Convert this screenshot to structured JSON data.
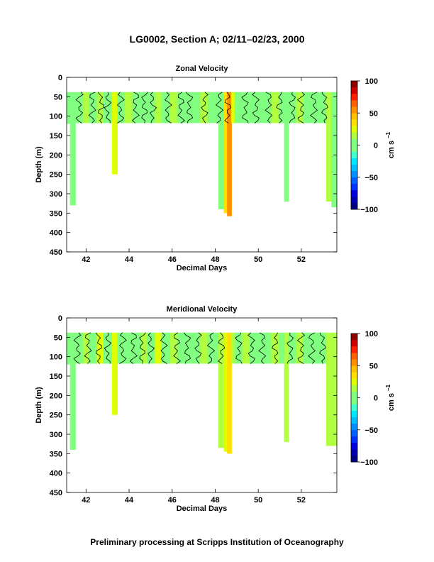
{
  "page": {
    "title": "LG0002, Section A; 02/11–02/23, 2000",
    "footer": "Preliminary processing at Scripps Institution of Oceanography"
  },
  "chart_data": [
    {
      "type": "heatmap",
      "title": "Zonal Velocity",
      "xlabel": "Decimal Days",
      "ylabel": "Depth (m)",
      "xlim": [
        41.1,
        53.65
      ],
      "ylim": [
        450,
        0
      ],
      "xticks": [
        "42",
        "44",
        "46",
        "48",
        "50",
        "52"
      ],
      "yticks": [
        "0",
        "50",
        "100",
        "150",
        "200",
        "250",
        "300",
        "350",
        "400",
        "450"
      ],
      "colorbar": {
        "label": "cm s",
        "label_superscript": "−1",
        "range": [
          -100,
          100
        ],
        "ticks": [
          "100",
          "50",
          "0",
          "−50",
          "−100"
        ]
      },
      "data_top_depth": 38,
      "shallow_bottom_depth": 118,
      "columns": [
        {
          "x": 41.1,
          "w": 0.15,
          "d": 120,
          "v": 5
        },
        {
          "x": 41.25,
          "w": 0.25,
          "d": 330,
          "v": 0
        },
        {
          "x": 41.5,
          "w": 0.35,
          "d": 118,
          "v": 2
        },
        {
          "x": 41.85,
          "w": 0.3,
          "d": 118,
          "v": 10
        },
        {
          "x": 42.15,
          "w": 0.35,
          "d": 118,
          "v": -2
        },
        {
          "x": 42.5,
          "w": 0.3,
          "d": 118,
          "v": 15
        },
        {
          "x": 42.8,
          "w": 0.4,
          "d": 118,
          "v": 3
        },
        {
          "x": 43.2,
          "w": 0.25,
          "d": 250,
          "v": 25
        },
        {
          "x": 43.45,
          "w": 0.35,
          "d": 118,
          "v": 0
        },
        {
          "x": 43.8,
          "w": 0.35,
          "d": 118,
          "v": 12
        },
        {
          "x": 44.15,
          "w": 0.4,
          "d": 118,
          "v": -3
        },
        {
          "x": 44.55,
          "w": 0.3,
          "d": 118,
          "v": 8
        },
        {
          "x": 44.85,
          "w": 0.35,
          "d": 118,
          "v": 2
        },
        {
          "x": 45.2,
          "w": 0.3,
          "d": 118,
          "v": 18
        },
        {
          "x": 45.5,
          "w": 0.4,
          "d": 118,
          "v": 0
        },
        {
          "x": 45.9,
          "w": 0.35,
          "d": 118,
          "v": 10
        },
        {
          "x": 46.25,
          "w": 0.35,
          "d": 118,
          "v": -2
        },
        {
          "x": 46.6,
          "w": 0.35,
          "d": 118,
          "v": 5
        },
        {
          "x": 46.95,
          "w": 0.35,
          "d": 118,
          "v": 0
        },
        {
          "x": 47.3,
          "w": 0.35,
          "d": 118,
          "v": 12
        },
        {
          "x": 47.65,
          "w": 0.35,
          "d": 118,
          "v": -3
        },
        {
          "x": 48.0,
          "w": 0.3,
          "d": 118,
          "v": 3
        },
        {
          "x": 48.15,
          "w": 0.25,
          "d": 340,
          "v": 8
        },
        {
          "x": 48.4,
          "w": 0.15,
          "d": 350,
          "v": 35
        },
        {
          "x": 48.55,
          "w": 0.2,
          "d": 358,
          "v": 55
        },
        {
          "x": 48.75,
          "w": 0.15,
          "d": 118,
          "v": 20
        },
        {
          "x": 48.9,
          "w": 0.35,
          "d": 118,
          "v": 0
        },
        {
          "x": 49.25,
          "w": 0.35,
          "d": 118,
          "v": 8
        },
        {
          "x": 49.6,
          "w": 0.35,
          "d": 118,
          "v": -2
        },
        {
          "x": 49.95,
          "w": 0.35,
          "d": 118,
          "v": 6
        },
        {
          "x": 50.3,
          "w": 0.3,
          "d": 118,
          "v": 0
        },
        {
          "x": 50.6,
          "w": 0.35,
          "d": 118,
          "v": 12
        },
        {
          "x": 50.95,
          "w": 0.25,
          "d": 118,
          "v": -2
        },
        {
          "x": 51.2,
          "w": 0.2,
          "d": 320,
          "v": 5
        },
        {
          "x": 51.4,
          "w": 0.35,
          "d": 118,
          "v": 2
        },
        {
          "x": 51.75,
          "w": 0.35,
          "d": 118,
          "v": 10
        },
        {
          "x": 52.1,
          "w": 0.35,
          "d": 118,
          "v": -1
        },
        {
          "x": 52.45,
          "w": 0.4,
          "d": 118,
          "v": 5
        },
        {
          "x": 52.85,
          "w": 0.3,
          "d": 118,
          "v": 0
        },
        {
          "x": 53.15,
          "w": 0.25,
          "d": 320,
          "v": 15
        },
        {
          "x": 53.4,
          "w": 0.25,
          "d": 335,
          "v": 5
        }
      ],
      "contour_x": [
        41.7,
        42.3,
        42.7,
        43.0,
        43.6,
        44.3,
        44.7,
        45.1,
        45.8,
        46.4,
        46.8,
        47.5,
        48.2,
        48.6,
        49.4,
        49.9,
        50.5,
        51.0,
        51.6,
        52.0,
        52.6,
        53.1
      ]
    },
    {
      "type": "heatmap",
      "title": "Meridional Velocity",
      "xlabel": "Decimal Days",
      "ylabel": "Depth (m)",
      "xlim": [
        41.1,
        53.65
      ],
      "ylim": [
        450,
        0
      ],
      "xticks": [
        "42",
        "44",
        "46",
        "48",
        "50",
        "52"
      ],
      "yticks": [
        "0",
        "50",
        "100",
        "150",
        "200",
        "250",
        "300",
        "350",
        "400",
        "450"
      ],
      "colorbar": {
        "label": "cm s",
        "label_superscript": "−1",
        "range": [
          -100,
          100
        ],
        "ticks": [
          "100",
          "50",
          "0",
          "−50",
          "−100"
        ]
      },
      "data_top_depth": 38,
      "shallow_bottom_depth": 118,
      "columns": [
        {
          "x": 41.1,
          "w": 0.15,
          "d": 120,
          "v": 3
        },
        {
          "x": 41.25,
          "w": 0.25,
          "d": 340,
          "v": 0
        },
        {
          "x": 41.5,
          "w": 0.35,
          "d": 118,
          "v": 5
        },
        {
          "x": 41.85,
          "w": 0.3,
          "d": 118,
          "v": 15
        },
        {
          "x": 42.15,
          "w": 0.35,
          "d": 118,
          "v": 0
        },
        {
          "x": 42.5,
          "w": 0.3,
          "d": 118,
          "v": 20
        },
        {
          "x": 42.8,
          "w": 0.4,
          "d": 118,
          "v": 5
        },
        {
          "x": 43.2,
          "w": 0.25,
          "d": 250,
          "v": 22
        },
        {
          "x": 43.45,
          "w": 0.35,
          "d": 118,
          "v": 2
        },
        {
          "x": 43.8,
          "w": 0.35,
          "d": 118,
          "v": 8
        },
        {
          "x": 44.15,
          "w": 0.4,
          "d": 118,
          "v": 0
        },
        {
          "x": 44.55,
          "w": 0.3,
          "d": 118,
          "v": 15
        },
        {
          "x": 44.85,
          "w": 0.35,
          "d": 118,
          "v": 3
        },
        {
          "x": 45.2,
          "w": 0.3,
          "d": 118,
          "v": 20
        },
        {
          "x": 45.5,
          "w": 0.4,
          "d": 118,
          "v": 2
        },
        {
          "x": 45.9,
          "w": 0.35,
          "d": 118,
          "v": 12
        },
        {
          "x": 46.25,
          "w": 0.35,
          "d": 118,
          "v": 0
        },
        {
          "x": 46.6,
          "w": 0.35,
          "d": 118,
          "v": 8
        },
        {
          "x": 46.95,
          "w": 0.35,
          "d": 118,
          "v": 2
        },
        {
          "x": 47.3,
          "w": 0.35,
          "d": 118,
          "v": 15
        },
        {
          "x": 47.65,
          "w": 0.35,
          "d": 118,
          "v": 0
        },
        {
          "x": 48.0,
          "w": 0.3,
          "d": 118,
          "v": 5
        },
        {
          "x": 48.15,
          "w": 0.25,
          "d": 335,
          "v": 10
        },
        {
          "x": 48.4,
          "w": 0.15,
          "d": 345,
          "v": 25
        },
        {
          "x": 48.55,
          "w": 0.2,
          "d": 350,
          "v": 30
        },
        {
          "x": 48.75,
          "w": 0.15,
          "d": 118,
          "v": 15
        },
        {
          "x": 48.9,
          "w": 0.35,
          "d": 118,
          "v": 2
        },
        {
          "x": 49.25,
          "w": 0.35,
          "d": 118,
          "v": 10
        },
        {
          "x": 49.6,
          "w": 0.35,
          "d": 118,
          "v": 0
        },
        {
          "x": 49.95,
          "w": 0.35,
          "d": 118,
          "v": 8
        },
        {
          "x": 50.3,
          "w": 0.3,
          "d": 118,
          "v": 2
        },
        {
          "x": 50.6,
          "w": 0.35,
          "d": 118,
          "v": 15
        },
        {
          "x": 50.95,
          "w": 0.25,
          "d": 118,
          "v": 0
        },
        {
          "x": 51.2,
          "w": 0.2,
          "d": 320,
          "v": 15
        },
        {
          "x": 51.4,
          "w": 0.35,
          "d": 118,
          "v": 5
        },
        {
          "x": 51.75,
          "w": 0.35,
          "d": 118,
          "v": 12
        },
        {
          "x": 52.1,
          "w": 0.35,
          "d": 118,
          "v": 2
        },
        {
          "x": 52.45,
          "w": 0.4,
          "d": 118,
          "v": 8
        },
        {
          "x": 52.85,
          "w": 0.3,
          "d": 118,
          "v": 0
        },
        {
          "x": 53.15,
          "w": 0.25,
          "d": 330,
          "v": 15
        },
        {
          "x": 53.4,
          "w": 0.25,
          "d": 330,
          "v": 10
        }
      ],
      "contour_x": [
        41.6,
        42.1,
        42.6,
        43.0,
        43.7,
        44.2,
        44.6,
        45.0,
        45.6,
        46.2,
        46.7,
        47.2,
        47.8,
        48.3,
        49.1,
        49.7,
        50.2,
        50.8,
        51.5,
        52.0,
        52.5,
        53.0
      ]
    }
  ]
}
